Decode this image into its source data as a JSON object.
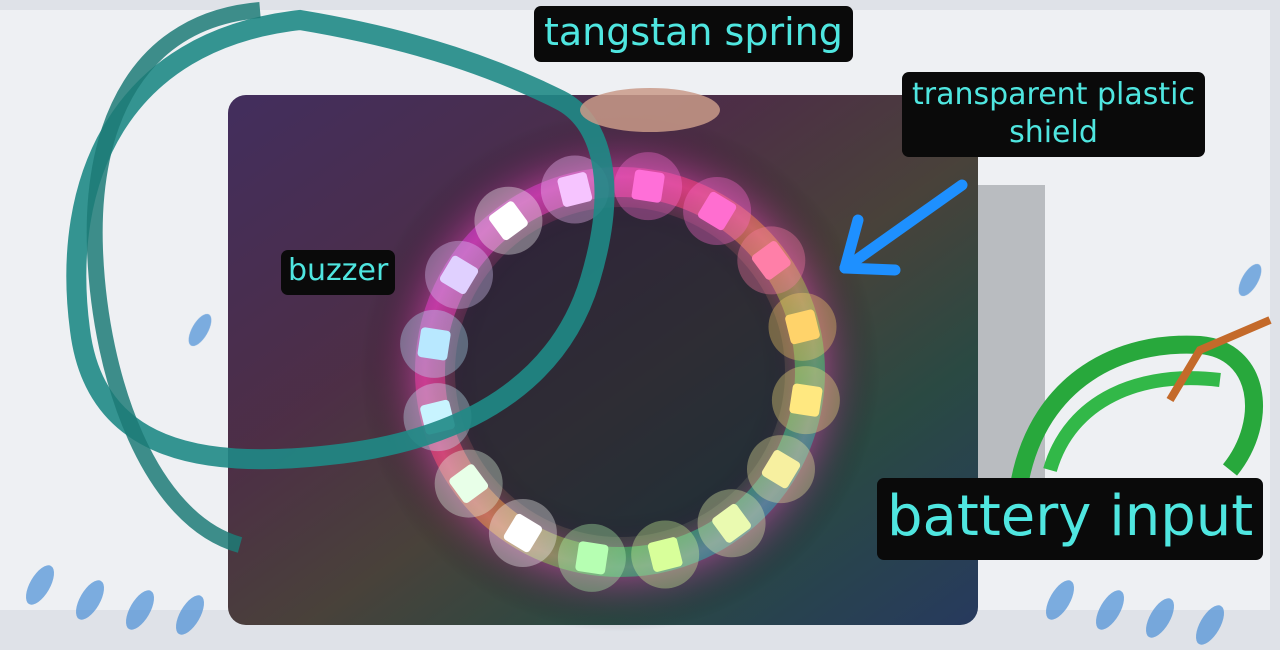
{
  "labels": {
    "spring": "tangstan spring",
    "shield_line1": "transparent plastic",
    "shield_line2": "shield",
    "buzzer": "buzzer",
    "battery": "battery input"
  },
  "colors": {
    "label_text": "#4fe6e0",
    "label_bg": "#0a0a0a",
    "arrow": "#1e90ff",
    "enclosure": "#262b3a"
  },
  "led_ring": {
    "led_count": 16,
    "colors": [
      "#ff6fd8",
      "#ff6ed0",
      "#ff7fa8",
      "#ffd36a",
      "#ffe880",
      "#f7f0a0",
      "#eafab0",
      "#d8ff9a",
      "#b6ffb2",
      "#ffffff",
      "#e8ffe8",
      "#c8f4ff",
      "#b8e8ff",
      "#e0d0ff",
      "#ffffff",
      "#f6c4ff"
    ]
  }
}
